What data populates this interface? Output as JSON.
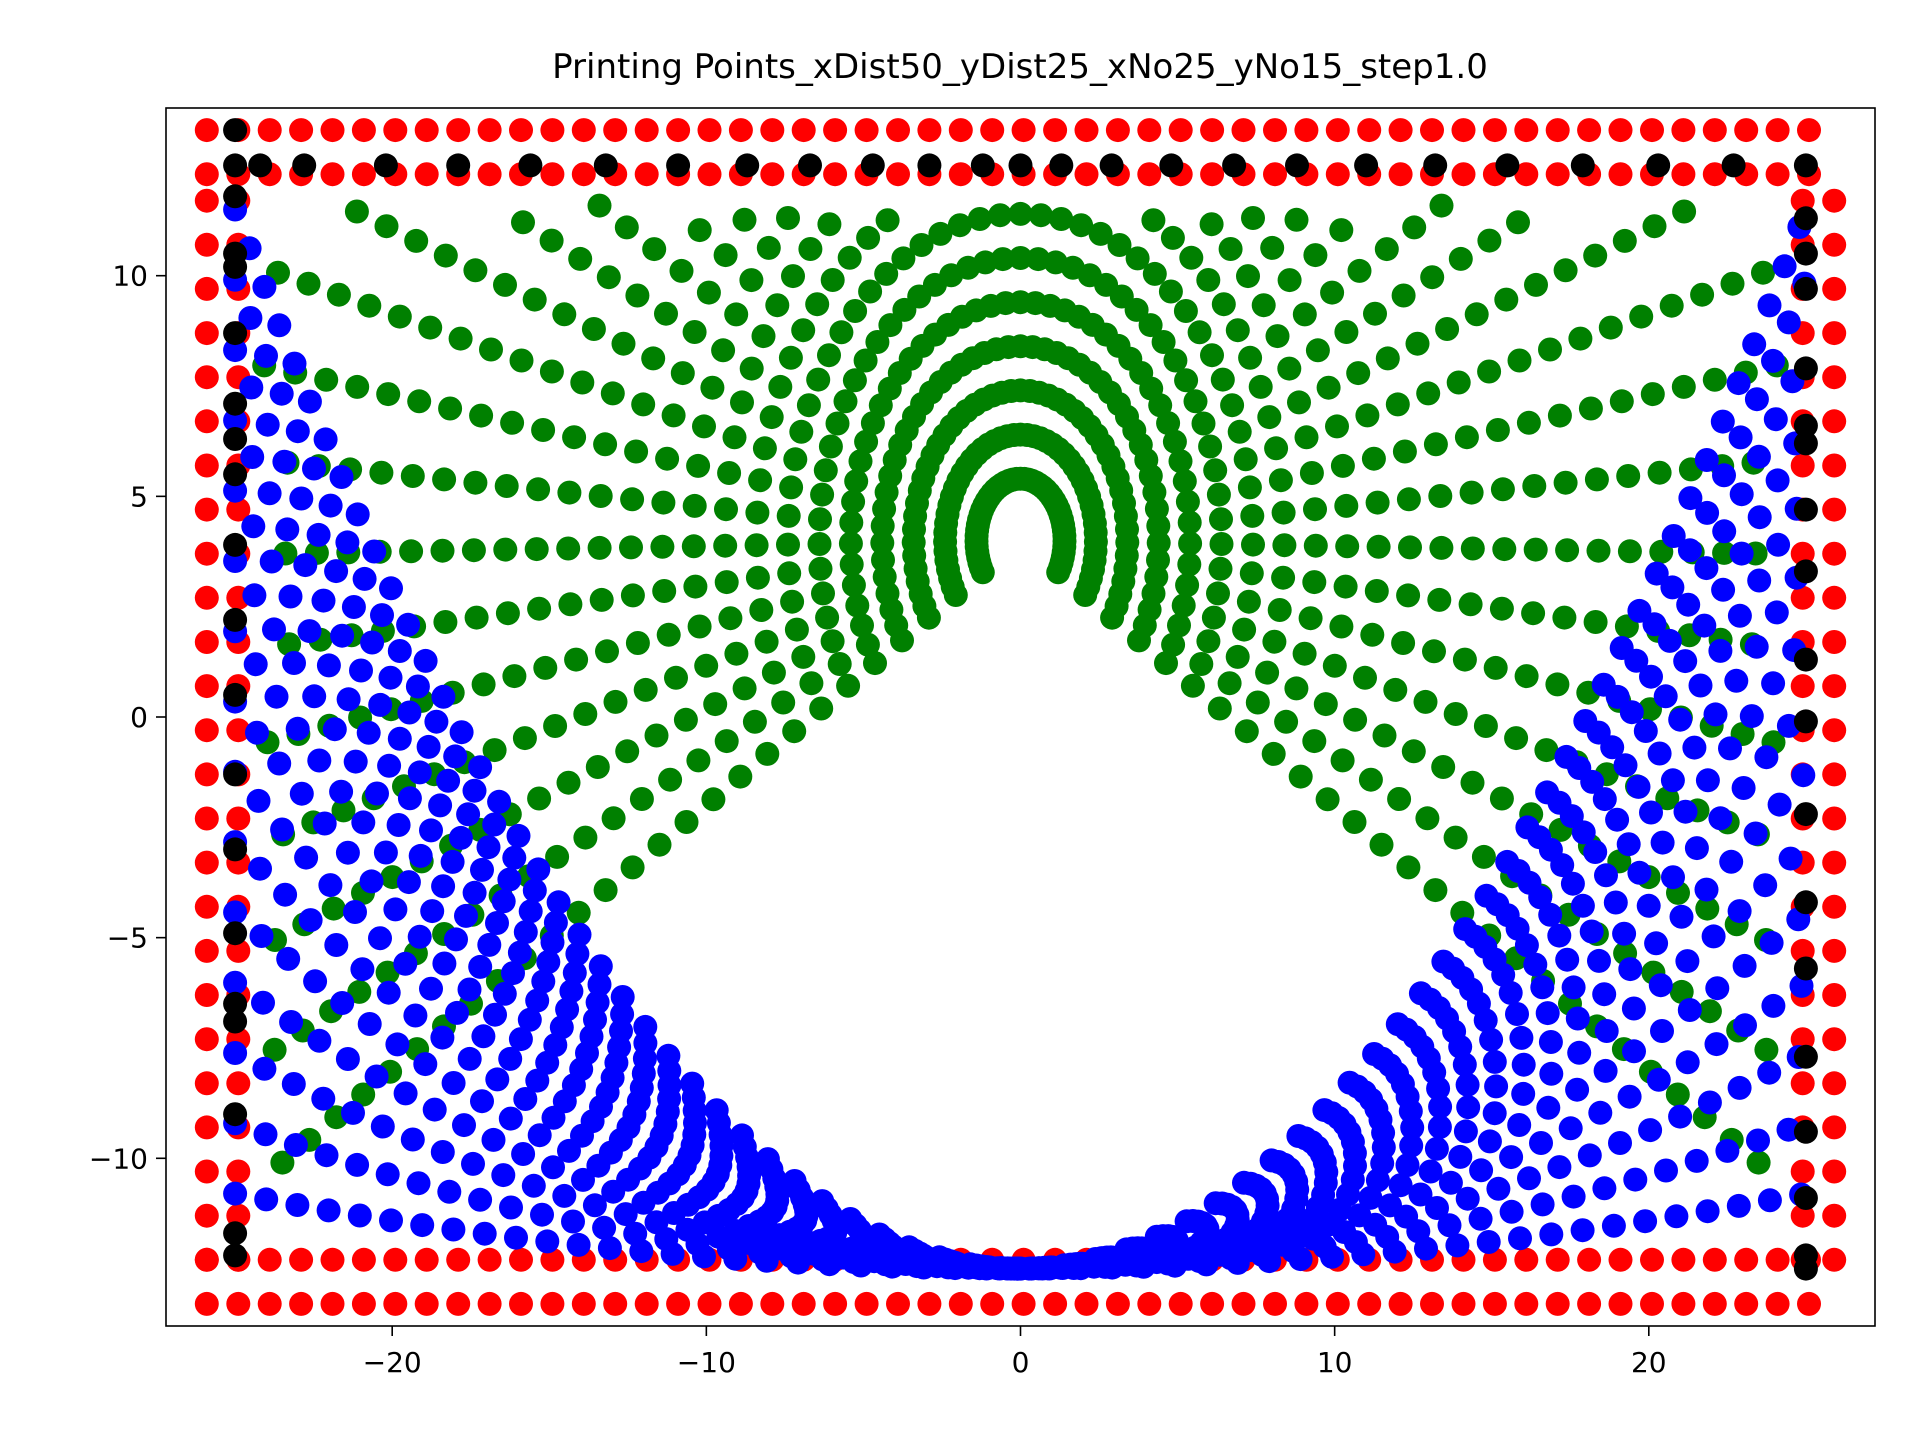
{
  "chart_data": {
    "type": "scatter",
    "title": "Printing Points_xDist50_yDist25_xNo25_yNo15_step1.0",
    "xlabel": "",
    "ylabel": "",
    "xlim": [
      -27.2,
      27.2
    ],
    "ylim": [
      -13.8,
      13.8
    ],
    "xticks": [
      -20,
      -10,
      0,
      10,
      20
    ],
    "yticks": [
      -10,
      -5,
      0,
      5,
      10
    ],
    "xtick_labels": [
      "−20",
      "−10",
      "0",
      "10",
      "20"
    ],
    "ytick_labels": [
      "−10",
      "−5",
      "0",
      "5",
      "10"
    ],
    "grid": false,
    "legend": "none",
    "series": [
      {
        "color": "#ff0000",
        "description": "boundary printing points",
        "bottom": {
          "y": [
            -13.3,
            -12.3
          ],
          "x_start": -25.9,
          "x_end": 25.9,
          "step": 1.0
        },
        "top": {
          "y": [
            12.3,
            13.3
          ],
          "x_start": -25.9,
          "x_end": 25.9,
          "step": 1.0
        },
        "left": {
          "x": [
            -25.9,
            -24.9
          ],
          "y_start": -12.3,
          "y_end": 12.3,
          "step": 1.0
        },
        "right": {
          "x": [
            24.9,
            25.9
          ],
          "y_start": -12.3,
          "y_end": 12.3,
          "step": 1.0
        }
      },
      {
        "color": "#008000",
        "description": "radial lines from origin (0, 4) to the top and side edges",
        "origin": [
          0,
          4
        ],
        "count": 49,
        "step": 1.0
      },
      {
        "color": "#0000ff",
        "description": "parabolic paths from the bottom edge toward the left and right edges",
        "count": 15,
        "x_range": [
          -25,
          25
        ],
        "y_bottom": -12.5,
        "y_top_start": 11.5,
        "y_top_end": -10.8,
        "step": 1.0
      },
      {
        "color": "#000000",
        "description": "black anchor points along the top row and side columns",
        "top_row_y": 12.5,
        "top_row_x": [
          -24.2,
          -22.8,
          -20.2,
          -17.9,
          -15.6,
          -13.2,
          -10.9,
          -8.7,
          -6.7,
          -4.7,
          -2.9,
          -1.2,
          0,
          1.3,
          2.9,
          4.8,
          6.8,
          8.8,
          11.0,
          13.2,
          15.5,
          17.9,
          20.3,
          22.7
        ],
        "left_column_x": -25,
        "right_column_x": 25,
        "column_y": [
          13.3,
          12.5,
          11.8,
          10.5,
          10.2,
          8.7,
          7.1,
          6.3,
          5.5,
          3.9,
          2.2,
          0.5,
          -1.3,
          -3.0,
          -4.9,
          -6.5,
          -6.9,
          -9.0,
          -11.7,
          -12.2
        ],
        "right_column_y": [
          12.5,
          11.3,
          10.5,
          9.7,
          7.9,
          6.6,
          6.2,
          4.7,
          3.3,
          1.3,
          -0.1,
          -2.2,
          -4.2,
          -5.7,
          -7.7,
          -9.4,
          -10.9,
          -12.2,
          -12.5
        ]
      }
    ]
  }
}
